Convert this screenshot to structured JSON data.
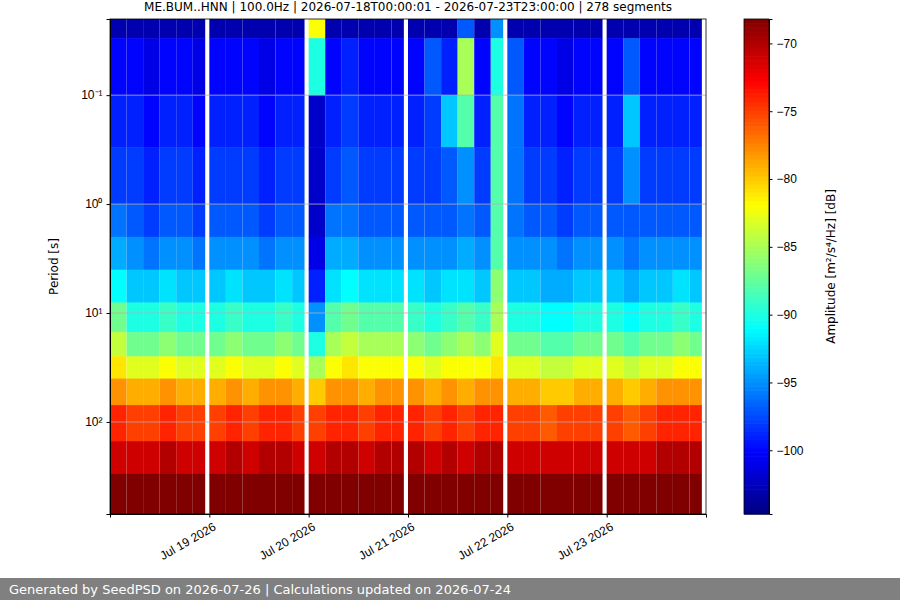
{
  "chart_data": {
    "type": "heatmap",
    "title": "ME.BUM..HNN | 100.0Hz | 2026-07-18T00:00:01 - 2026-07-23T23:00:00 | 278 segments",
    "y_label": "Period [s]",
    "footer": "Generated by SeedPSD on 2026-07-26 | Calculations updated on 2026-07-24",
    "log": "y",
    "grid": true,
    "color": "jet",
    "xlim": [
      "2026-07-18T00:00",
      "2026-07-24T00:00"
    ],
    "xticks": [
      {
        "value": "2026-07-19T00:00",
        "label": "Jul 19 2026"
      },
      {
        "value": "2026-07-20T00:00",
        "label": "Jul 20 2026"
      },
      {
        "value": "2026-07-21T00:00",
        "label": "Jul 21 2026"
      },
      {
        "value": "2026-07-22T00:00",
        "label": "Jul 22 2026"
      },
      {
        "value": "2026-07-23T00:00",
        "label": "Jul 23 2026"
      }
    ],
    "ylim": [
      0.02,
      700
    ],
    "yticks": [
      {
        "value": 0.1,
        "label": "10⁻¹"
      },
      {
        "value": 1,
        "label": "10⁰"
      },
      {
        "value": 10,
        "label": "10¹"
      },
      {
        "value": 100,
        "label": "10²"
      }
    ],
    "cells": {
      "x": [
        "2026-07-18T00:00",
        "2026-07-18T04:00",
        "2026-07-18T08:00",
        "2026-07-18T12:00",
        "2026-07-18T16:00",
        "2026-07-18T20:00",
        "2026-07-19T00:00",
        "2026-07-19T04:00",
        "2026-07-19T08:00",
        "2026-07-19T12:00",
        "2026-07-19T16:00",
        "2026-07-19T20:00",
        "2026-07-20T00:00",
        "2026-07-20T04:00",
        "2026-07-20T08:00",
        "2026-07-20T12:00",
        "2026-07-20T16:00",
        "2026-07-20T20:00",
        "2026-07-21T00:00",
        "2026-07-21T04:00",
        "2026-07-21T08:00",
        "2026-07-21T12:00",
        "2026-07-21T16:00",
        "2026-07-21T20:00",
        "2026-07-22T00:00",
        "2026-07-22T04:00",
        "2026-07-22T08:00",
        "2026-07-22T12:00",
        "2026-07-22T16:00",
        "2026-07-22T20:00",
        "2026-07-23T00:00",
        "2026-07-23T04:00",
        "2026-07-23T08:00",
        "2026-07-23T12:00",
        "2026-07-23T16:00",
        "2026-07-23T20:00"
      ],
      "x_end": [
        "2026-07-18T04:00",
        "2026-07-18T08:00",
        "2026-07-18T12:00",
        "2026-07-18T16:00",
        "2026-07-18T20:00",
        "2026-07-18T23:00",
        "2026-07-19T04:00",
        "2026-07-19T08:00",
        "2026-07-19T12:00",
        "2026-07-19T16:00",
        "2026-07-19T20:00",
        "2026-07-19T23:00",
        "2026-07-20T04:00",
        "2026-07-20T08:00",
        "2026-07-20T12:00",
        "2026-07-20T16:00",
        "2026-07-20T20:00",
        "2026-07-20T23:00",
        "2026-07-21T04:00",
        "2026-07-21T08:00",
        "2026-07-21T12:00",
        "2026-07-21T16:00",
        "2026-07-21T20:00",
        "2026-07-21T23:00",
        "2026-07-22T04:00",
        "2026-07-22T08:00",
        "2026-07-22T12:00",
        "2026-07-22T16:00",
        "2026-07-22T20:00",
        "2026-07-22T23:00",
        "2026-07-23T04:00",
        "2026-07-23T08:00",
        "2026-07-23T12:00",
        "2026-07-23T16:00",
        "2026-07-23T20:00",
        "2026-07-23T23:00"
      ],
      "y_edges": [
        0.02,
        0.03,
        0.1,
        0.3,
        1,
        2,
        4,
        8,
        15,
        25,
        40,
        70,
        150,
        300,
        700
      ],
      "values": [
        [
          -103,
          -103,
          -103,
          -103,
          -103,
          -103,
          -103,
          -103,
          -103,
          -103,
          -103,
          -103,
          -82,
          -103,
          -103,
          -103,
          -103,
          -103,
          -103,
          -103,
          -103,
          -97,
          -103,
          -95,
          -103,
          -103,
          -103,
          -103,
          -103,
          -103,
          -103,
          -103,
          -103,
          -103,
          -103,
          -103
        ],
        [
          -100,
          -100,
          -101,
          -100,
          -100,
          -101,
          -100,
          -100,
          -100,
          -101,
          -100,
          -100,
          -90,
          -100,
          -99,
          -100,
          -100,
          -100,
          -100,
          -97,
          -99,
          -85,
          -100,
          -90,
          -97,
          -100,
          -100,
          -101,
          -100,
          -100,
          -100,
          -97,
          -100,
          -100,
          -100,
          -100
        ],
        [
          -99,
          -99,
          -100,
          -99,
          -99,
          -100,
          -99,
          -99,
          -99,
          -100,
          -99,
          -99,
          -102,
          -99,
          -98,
          -99,
          -99,
          -99,
          -99,
          -98,
          -93,
          -88,
          -99,
          -88,
          -96,
          -99,
          -99,
          -100,
          -99,
          -99,
          -99,
          -93,
          -99,
          -99,
          -99,
          -99
        ],
        [
          -98,
          -98,
          -99,
          -98,
          -98,
          -99,
          -98,
          -98,
          -98,
          -99,
          -98,
          -98,
          -102,
          -98,
          -97,
          -98,
          -98,
          -98,
          -98,
          -98,
          -97,
          -95,
          -98,
          -88,
          -96,
          -98,
          -98,
          -99,
          -98,
          -98,
          -98,
          -95,
          -98,
          -98,
          -98,
          -98
        ],
        [
          -96,
          -97,
          -98,
          -97,
          -97,
          -98,
          -97,
          -97,
          -97,
          -98,
          -97,
          -97,
          -102,
          -96,
          -96,
          -97,
          -97,
          -97,
          -97,
          -97,
          -97,
          -96,
          -97,
          -88,
          -96,
          -97,
          -97,
          -98,
          -97,
          -97,
          -97,
          -97,
          -97,
          -97,
          -97,
          -97
        ],
        [
          -94,
          -95,
          -96,
          -95,
          -95,
          -96,
          -95,
          -95,
          -95,
          -96,
          -95,
          -95,
          -101,
          -94,
          -94,
          -95,
          -95,
          -95,
          -95,
          -95,
          -95,
          -94,
          -95,
          -88,
          -95,
          -95,
          -95,
          -96,
          -95,
          -95,
          -95,
          -96,
          -95,
          -95,
          -95,
          -95
        ],
        [
          -91,
          -93,
          -93,
          -92,
          -93,
          -93,
          -93,
          -92,
          -93,
          -93,
          -92,
          -93,
          -99,
          -92,
          -91,
          -92,
          -92,
          -92,
          -92,
          -93,
          -92,
          -92,
          -93,
          -86,
          -93,
          -93,
          -94,
          -94,
          -93,
          -93,
          -93,
          -94,
          -93,
          -93,
          -92,
          -93
        ],
        [
          -87,
          -90,
          -90,
          -89,
          -90,
          -90,
          -90,
          -89,
          -90,
          -90,
          -89,
          -90,
          -95,
          -88,
          -87,
          -88,
          -88,
          -88,
          -89,
          -90,
          -89,
          -88,
          -89,
          -85,
          -90,
          -90,
          -91,
          -91,
          -90,
          -90,
          -90,
          -91,
          -90,
          -90,
          -89,
          -90
        ],
        [
          -84,
          -87,
          -87,
          -86,
          -87,
          -87,
          -87,
          -86,
          -87,
          -87,
          -86,
          -87,
          -90,
          -85,
          -84,
          -85,
          -85,
          -85,
          -86,
          -87,
          -86,
          -85,
          -86,
          -83,
          -87,
          -87,
          -88,
          -88,
          -87,
          -87,
          -87,
          -88,
          -87,
          -87,
          -86,
          -87
        ],
        [
          -81,
          -83,
          -83,
          -82,
          -83,
          -83,
          -83,
          -82,
          -83,
          -83,
          -82,
          -83,
          -85,
          -82,
          -81,
          -82,
          -82,
          -82,
          -82,
          -83,
          -82,
          -82,
          -82,
          -81,
          -83,
          -83,
          -84,
          -84,
          -83,
          -83,
          -83,
          -84,
          -83,
          -83,
          -82,
          -82
        ],
        [
          -78,
          -79,
          -79,
          -78,
          -79,
          -79,
          -79,
          -78,
          -79,
          -78,
          -78,
          -79,
          -80,
          -78,
          -78,
          -79,
          -78,
          -78,
          -78,
          -79,
          -78,
          -79,
          -78,
          -78,
          -79,
          -79,
          -80,
          -80,
          -79,
          -79,
          -79,
          -80,
          -79,
          -78,
          -78,
          -78
        ],
        [
          -74,
          -75,
          -75,
          -74,
          -75,
          -75,
          -75,
          -74,
          -75,
          -74,
          -74,
          -75,
          -75,
          -74,
          -74,
          -75,
          -74,
          -74,
          -74,
          -75,
          -74,
          -75,
          -74,
          -74,
          -75,
          -75,
          -76,
          -75,
          -75,
          -75,
          -75,
          -76,
          -75,
          -74,
          -74,
          -74
        ],
        [
          -71,
          -71,
          -71,
          -70,
          -71,
          -71,
          -71,
          -70,
          -71,
          -70,
          -70,
          -71,
          -71,
          -70,
          -70,
          -71,
          -70,
          -70,
          -70,
          -71,
          -70,
          -71,
          -70,
          -70,
          -71,
          -71,
          -71,
          -71,
          -71,
          -71,
          -71,
          -71,
          -71,
          -70,
          -70,
          -70
        ],
        [
          -68,
          -68,
          -68,
          -68,
          -68,
          -68,
          -68,
          -68,
          -68,
          -68,
          -68,
          -68,
          -68,
          -68,
          -68,
          -68,
          -68,
          -68,
          -68,
          -68,
          -68,
          -68,
          -68,
          -68,
          -68,
          -68,
          -68,
          -68,
          -68,
          -68,
          -68,
          -68,
          -68,
          -68,
          -68,
          -68
        ]
      ]
    },
    "colorbar": {
      "label": "Amplitude [m²/s⁴/Hz] [dB]",
      "range": [
        -104.7,
        -68.2
      ],
      "ticks": [
        {
          "value": -100,
          "label": "−100"
        },
        {
          "value": -95,
          "label": "−95"
        },
        {
          "value": -90,
          "label": "−90"
        },
        {
          "value": -85,
          "label": "−85"
        },
        {
          "value": -80,
          "label": "−80"
        },
        {
          "value": -75,
          "label": "−75"
        },
        {
          "value": -70,
          "label": "−70"
        }
      ]
    }
  }
}
